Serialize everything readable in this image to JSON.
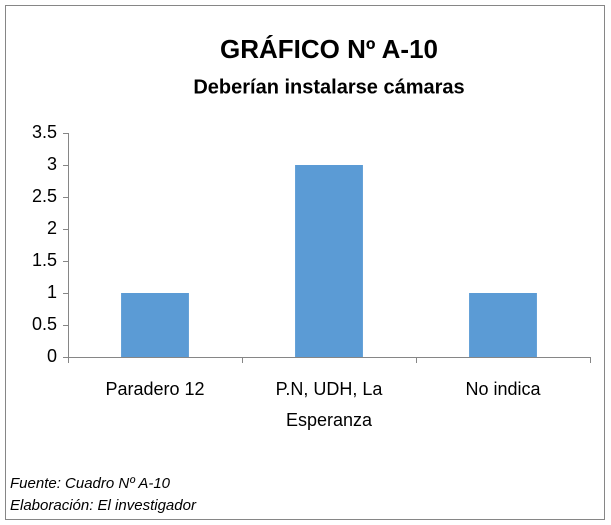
{
  "chart_data": {
    "type": "bar",
    "title": "GRÁFICO Nº A-10",
    "subtitle": "Deberían instalarse cámaras",
    "categories": [
      "Paradero 12",
      "P.N, UDH, La Esperanza",
      "No indica"
    ],
    "values": [
      1,
      3,
      1
    ],
    "color": "#5b9bd5",
    "ylim": [
      0,
      3.5
    ],
    "yticks": [
      0,
      0.5,
      1,
      1.5,
      2,
      2.5,
      3,
      3.5
    ],
    "grid": false,
    "notes": [
      "Fuente: Cuadro Nº A-10",
      "Elaboración: El investigador"
    ]
  }
}
